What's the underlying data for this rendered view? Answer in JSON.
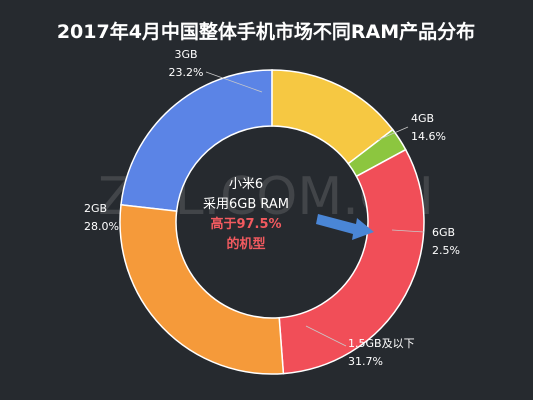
{
  "chart_data": {
    "type": "pie",
    "title": "2017年4月中国整体手机市场不同RAM产品分布",
    "watermark": "ZOL.COM.CN",
    "slices": [
      {
        "label": "3GB",
        "value": 23.2,
        "display": "23.2%",
        "color": "#5b84e6"
      },
      {
        "label": "4GB",
        "value": 14.6,
        "display": "14.6%",
        "color": "#f6c842"
      },
      {
        "label": "6GB",
        "value": 2.5,
        "display": "2.5%",
        "color": "#8cc63f"
      },
      {
        "label": "1.5GB及以下",
        "value": 31.7,
        "display": "31.7%",
        "color": "#f14e58"
      },
      {
        "label": "2GB",
        "value": 28.0,
        "display": "28.0%",
        "color": "#f59a3a"
      }
    ],
    "center_text": {
      "line1": "小米6",
      "line2": "采用6GB RAM",
      "line3": "高于97.5%",
      "line4": "的机型"
    },
    "colors": {
      "background": "#262a2f",
      "text": "#ffffff",
      "highlight": "#f15a5f",
      "arrow": "#4a86d6"
    }
  }
}
